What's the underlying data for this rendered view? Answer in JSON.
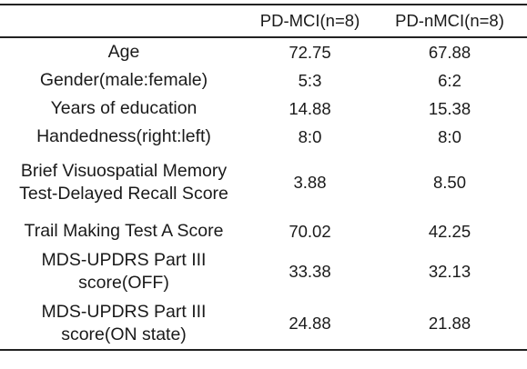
{
  "table": {
    "header": [
      "",
      "PD-MCI(n=8)",
      "PD-nMCI(n=8)"
    ],
    "rows": [
      {
        "label": "Age",
        "pd_mci": "72.75",
        "pd_nmci": "67.88"
      },
      {
        "label": "Gender(male:female)",
        "pd_mci": "5:3",
        "pd_nmci": "6:2"
      },
      {
        "label": "Years of education",
        "pd_mci": "14.88",
        "pd_nmci": "15.38"
      },
      {
        "label": "Handedness(right:left)",
        "pd_mci": "8:0",
        "pd_nmci": "8:0"
      },
      {
        "label_lines": [
          "Brief Visuospatial Memory",
          "Test-Delayed Recall Score"
        ],
        "pd_mci": "3.88",
        "pd_nmci": "8.50"
      },
      {
        "label": "Trail Making Test A Score",
        "pd_mci": "70.02",
        "pd_nmci": "42.25"
      },
      {
        "label_lines": [
          "MDS-UPDRS Part III",
          "score(OFF)"
        ],
        "pd_mci": "33.38",
        "pd_nmci": "32.13"
      },
      {
        "label_lines": [
          "MDS-UPDRS Part III",
          "score(ON state)"
        ],
        "pd_mci": "24.88",
        "pd_nmci": "21.88"
      }
    ]
  }
}
